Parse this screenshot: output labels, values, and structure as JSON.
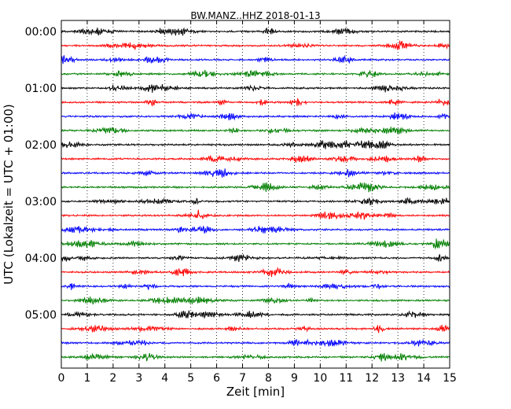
{
  "chart_data": {
    "type": "line",
    "title": "BW.MANZ..HHZ 2018-01-13",
    "xlabel": "Zeit  [min]",
    "ylabel": "UTC (Lokalzeit = UTC + 01:00)",
    "xlim": [
      0,
      15
    ],
    "xticks": [
      0,
      1,
      2,
      3,
      4,
      5,
      6,
      7,
      8,
      9,
      10,
      11,
      12,
      13,
      14,
      15
    ],
    "grid": "vertical dotted at each minute",
    "yticks": [
      "00:00",
      "01:00",
      "02:00",
      "03:00",
      "04:00",
      "05:00"
    ],
    "traces_per_hour": 4,
    "trace_colors": [
      "#000000",
      "#ff0000",
      "#0000ff",
      "#007f00"
    ],
    "traces": [
      {
        "start": "00:00",
        "color": "#000000"
      },
      {
        "start": "00:15",
        "color": "#ff0000"
      },
      {
        "start": "00:30",
        "color": "#0000ff"
      },
      {
        "start": "00:45",
        "color": "#007f00"
      },
      {
        "start": "01:00",
        "color": "#000000"
      },
      {
        "start": "01:15",
        "color": "#ff0000"
      },
      {
        "start": "01:30",
        "color": "#0000ff"
      },
      {
        "start": "01:45",
        "color": "#007f00"
      },
      {
        "start": "02:00",
        "color": "#000000"
      },
      {
        "start": "02:15",
        "color": "#ff0000"
      },
      {
        "start": "02:30",
        "color": "#0000ff"
      },
      {
        "start": "02:45",
        "color": "#007f00"
      },
      {
        "start": "03:00",
        "color": "#000000"
      },
      {
        "start": "03:15",
        "color": "#ff0000"
      },
      {
        "start": "03:30",
        "color": "#0000ff"
      },
      {
        "start": "03:45",
        "color": "#007f00"
      },
      {
        "start": "04:00",
        "color": "#000000"
      },
      {
        "start": "04:15",
        "color": "#ff0000"
      },
      {
        "start": "04:30",
        "color": "#0000ff"
      },
      {
        "start": "04:45",
        "color": "#007f00"
      },
      {
        "start": "05:00",
        "color": "#000000"
      },
      {
        "start": "05:15",
        "color": "#ff0000"
      },
      {
        "start": "05:30",
        "color": "#0000ff"
      },
      {
        "start": "05:45",
        "color": "#007f00"
      }
    ]
  }
}
